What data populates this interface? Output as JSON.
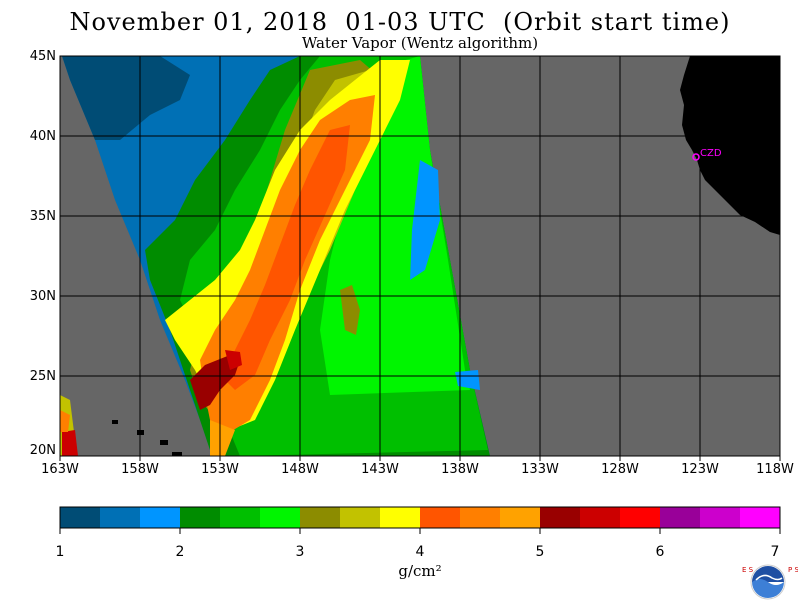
{
  "header": {
    "title": "November 01, 2018  01-03 UTC  (Orbit start time)",
    "subtitle": "Water Vapor (Wentz algorithm)"
  },
  "map": {
    "lat_labels": [
      "45N",
      "40N",
      "35N",
      "30N",
      "25N",
      "20N"
    ],
    "lon_labels": [
      "163W",
      "158W",
      "153W",
      "148W",
      "143W",
      "138W",
      "133W",
      "128W",
      "123W",
      "118W"
    ],
    "station_label": "CZD",
    "colors": {
      "no_data": "#666666",
      "land": "#000000",
      "grid": "#000000",
      "station": "#ff00ff"
    }
  },
  "colorbar": {
    "ticks": [
      "1",
      "2",
      "3",
      "4",
      "5",
      "6",
      "7"
    ],
    "unit": "g/cm²",
    "colors": [
      "#004c75",
      "#0070b5",
      "#0095ff",
      "#008c00",
      "#00bf00",
      "#00f500",
      "#8c8c00",
      "#c2c200",
      "#ffff00",
      "#ff5500",
      "#ff7f00",
      "#ffa200",
      "#990000",
      "#cc0000",
      "#ff0000",
      "#990099",
      "#cc00cc",
      "#ff00ff"
    ]
  },
  "logo": {
    "left_letters": "ESRL",
    "right_letters": "PSD",
    "center": "NOAA"
  }
}
